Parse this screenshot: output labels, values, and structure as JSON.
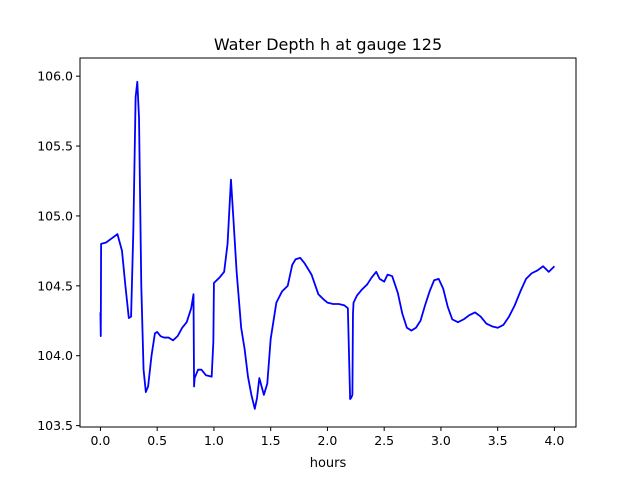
{
  "chart_data": {
    "type": "line",
    "title": "Water Depth h at gauge 125",
    "xlabel": "hours",
    "ylabel": "",
    "xlim": [
      -0.18,
      4.19
    ],
    "ylim": [
      103.49,
      106.13
    ],
    "grid": false,
    "legend": "none",
    "x_ticks": [
      0.0,
      0.5,
      1.0,
      1.5,
      2.0,
      2.5,
      3.0,
      3.5,
      4.0
    ],
    "x_tick_labels": [
      "0.0",
      "0.5",
      "1.0",
      "1.5",
      "2.0",
      "2.5",
      "3.0",
      "3.5",
      "4.0"
    ],
    "y_ticks": [
      103.5,
      104.0,
      104.5,
      105.0,
      105.5,
      106.0
    ],
    "y_tick_labels": [
      "103.5",
      "104.0",
      "104.5",
      "105.0",
      "105.5",
      "106.0"
    ],
    "series": [
      {
        "color": "#0000ff",
        "x": [
          0.0,
          0.003,
          0.006,
          0.05,
          0.1,
          0.15,
          0.19,
          0.22,
          0.25,
          0.27,
          0.29,
          0.31,
          0.325,
          0.34,
          0.36,
          0.38,
          0.4,
          0.42,
          0.45,
          0.48,
          0.5,
          0.53,
          0.56,
          0.6,
          0.64,
          0.68,
          0.72,
          0.76,
          0.8,
          0.82,
          0.825,
          0.83,
          0.86,
          0.89,
          0.93,
          0.98,
          0.995,
          1.0,
          1.05,
          1.09,
          1.12,
          1.15,
          1.17,
          1.2,
          1.24,
          1.27,
          1.3,
          1.33,
          1.36,
          1.38,
          1.4,
          1.44,
          1.47,
          1.5,
          1.55,
          1.6,
          1.65,
          1.69,
          1.72,
          1.76,
          1.8,
          1.86,
          1.92,
          1.97,
          2.0,
          2.05,
          2.1,
          2.15,
          2.18,
          2.2,
          2.21,
          2.22,
          2.225,
          2.23,
          2.26,
          2.3,
          2.35,
          2.39,
          2.43,
          2.46,
          2.5,
          2.53,
          2.57,
          2.62,
          2.66,
          2.7,
          2.74,
          2.78,
          2.82,
          2.86,
          2.9,
          2.94,
          2.98,
          3.02,
          3.06,
          3.1,
          3.15,
          3.2,
          3.25,
          3.3,
          3.35,
          3.4,
          3.45,
          3.5,
          3.55,
          3.6,
          3.65,
          3.7,
          3.75,
          3.8,
          3.85,
          3.9,
          3.95,
          4.0
        ],
        "y": [
          104.31,
          104.14,
          104.8,
          104.81,
          104.84,
          104.87,
          104.75,
          104.5,
          104.27,
          104.28,
          104.9,
          105.85,
          105.96,
          105.7,
          104.5,
          103.9,
          103.74,
          103.78,
          104.0,
          104.16,
          104.17,
          104.14,
          104.13,
          104.13,
          104.11,
          104.14,
          104.2,
          104.24,
          104.34,
          104.44,
          103.78,
          103.84,
          103.9,
          103.9,
          103.86,
          103.85,
          104.1,
          104.52,
          104.56,
          104.6,
          104.8,
          105.26,
          105.0,
          104.6,
          104.2,
          104.05,
          103.85,
          103.72,
          103.62,
          103.7,
          103.84,
          103.72,
          103.8,
          104.12,
          104.38,
          104.46,
          104.5,
          104.65,
          104.69,
          104.7,
          104.66,
          104.58,
          104.44,
          104.4,
          104.38,
          104.37,
          104.37,
          104.36,
          104.34,
          103.69,
          103.7,
          103.72,
          104.3,
          104.38,
          104.43,
          104.47,
          104.51,
          104.56,
          104.6,
          104.55,
          104.53,
          104.58,
          104.57,
          104.45,
          104.3,
          104.2,
          104.18,
          104.2,
          104.25,
          104.36,
          104.46,
          104.54,
          104.55,
          104.48,
          104.35,
          104.26,
          104.24,
          104.26,
          104.29,
          104.31,
          104.28,
          104.23,
          104.21,
          104.2,
          104.22,
          104.28,
          104.36,
          104.46,
          104.55,
          104.59,
          104.61,
          104.64,
          104.6,
          104.64
        ]
      }
    ]
  }
}
